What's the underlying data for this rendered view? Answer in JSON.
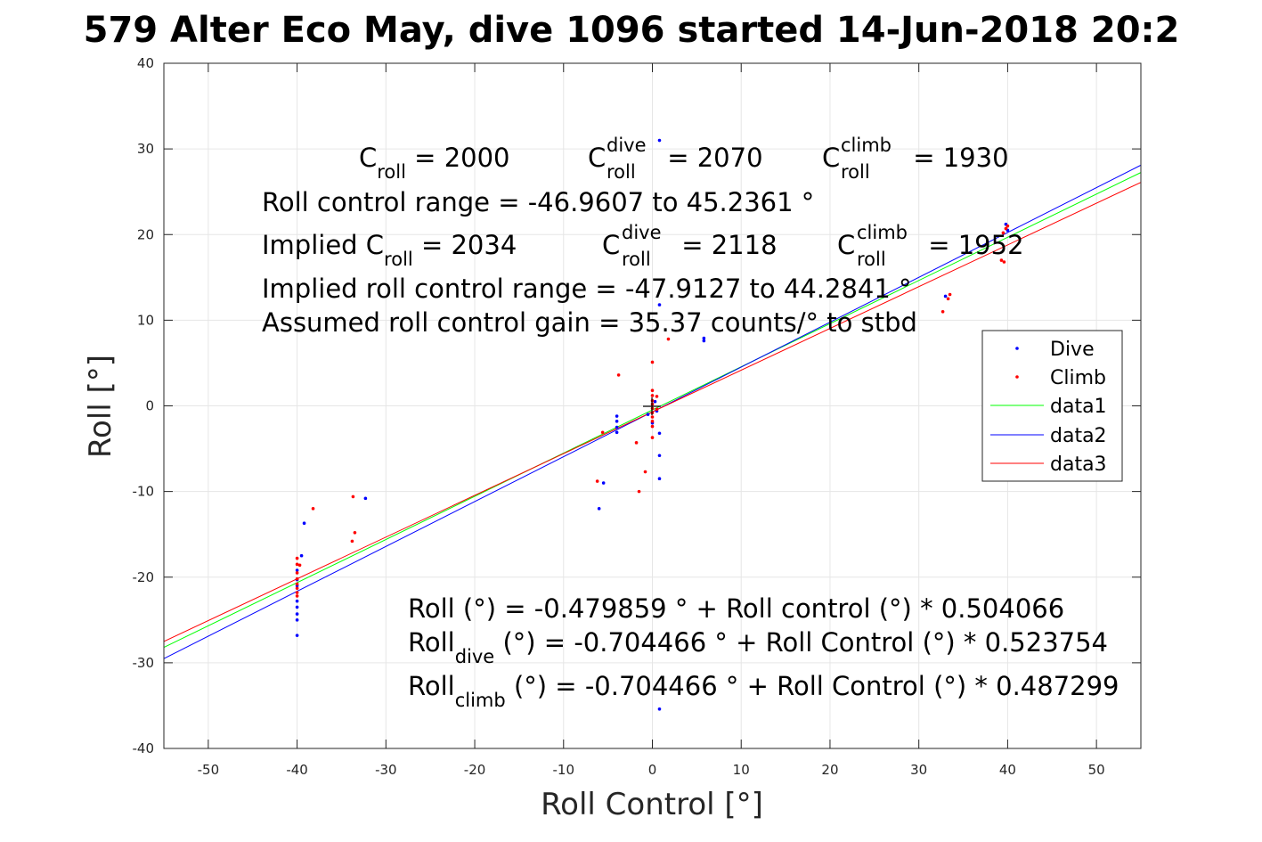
{
  "chart_data": {
    "type": "scatter",
    "title": "579 Alter Eco May, dive 1096 started 14-Jun-2018 20:2",
    "xlabel": "Roll Control [°]",
    "ylabel": "Roll [°]",
    "xlim": [
      -55,
      55
    ],
    "ylim": [
      -40,
      40
    ],
    "xticks": [
      -50,
      -40,
      -30,
      -20,
      -10,
      0,
      10,
      20,
      30,
      40,
      50
    ],
    "yticks": [
      -40,
      -30,
      -20,
      -10,
      0,
      10,
      20,
      30,
      40
    ],
    "xtick_labels": [
      "-50",
      "-40",
      "-30",
      "-20",
      "-10",
      "0",
      "10",
      "20",
      "30",
      "40",
      "50"
    ],
    "ytick_labels": [
      "-40",
      "-30",
      "-20",
      "-10",
      "0",
      "10",
      "20",
      "30",
      "40"
    ],
    "grid": true,
    "legend_position": "right",
    "series": [
      {
        "name": "Dive",
        "kind": "points",
        "color": "#0000ff",
        "points": [
          [
            -40,
            -26.8
          ],
          [
            -40,
            -25
          ],
          [
            -40,
            -24.3
          ],
          [
            -40,
            -23.5
          ],
          [
            -40,
            -22.8
          ],
          [
            -40,
            -21
          ],
          [
            -40,
            -20.3
          ],
          [
            -40,
            -19.2
          ],
          [
            -39.5,
            -17.5
          ],
          [
            -39.2,
            -13.7
          ],
          [
            -32.3,
            -10.8
          ],
          [
            -6,
            -12
          ],
          [
            -5.5,
            -9
          ],
          [
            -4,
            -1.2
          ],
          [
            -4,
            -1.8
          ],
          [
            -4,
            -2.5
          ],
          [
            -4,
            -3.1
          ],
          [
            -0.5,
            -1
          ],
          [
            0,
            -2
          ],
          [
            0.3,
            0.5
          ],
          [
            0.5,
            -0.6
          ],
          [
            0.8,
            31
          ],
          [
            0.8,
            11.8
          ],
          [
            0.8,
            -3.2
          ],
          [
            0.8,
            -5.8
          ],
          [
            0.8,
            -8.5
          ],
          [
            0.8,
            -35.4
          ],
          [
            5.8,
            7.6
          ],
          [
            5.8,
            7.9
          ],
          [
            33,
            12.8
          ],
          [
            39.8,
            21.2
          ],
          [
            40,
            20.5
          ]
        ]
      },
      {
        "name": "Climb",
        "kind": "points",
        "color": "#ff0000",
        "points": [
          [
            -40,
            -17.8
          ],
          [
            -40,
            -18.5
          ],
          [
            -40,
            -19.5
          ],
          [
            -40,
            -20.2
          ],
          [
            -40,
            -20.8
          ],
          [
            -40,
            -21.3
          ],
          [
            -40,
            -21.8
          ],
          [
            -40,
            -22.2
          ],
          [
            -39.7,
            -18.6
          ],
          [
            -38.2,
            -12
          ],
          [
            -33.7,
            -10.6
          ],
          [
            -33.5,
            -14.8
          ],
          [
            -33.8,
            -15.8
          ],
          [
            -6.2,
            -8.8
          ],
          [
            -5.6,
            -3.1
          ],
          [
            -3.8,
            3.6
          ],
          [
            -1.8,
            -4.3
          ],
          [
            -1.5,
            -10
          ],
          [
            -0.8,
            -7.7
          ],
          [
            0,
            5.1
          ],
          [
            0,
            1.8
          ],
          [
            0,
            1.2
          ],
          [
            0,
            0.6
          ],
          [
            0,
            0.2
          ],
          [
            0,
            -0.3
          ],
          [
            0,
            -0.8
          ],
          [
            0,
            -1.3
          ],
          [
            0,
            -1.8
          ],
          [
            0,
            -2.4
          ],
          [
            0,
            -3.7
          ],
          [
            0.5,
            1.1
          ],
          [
            0.5,
            -0.4
          ],
          [
            1.8,
            7.8
          ],
          [
            32.7,
            11
          ],
          [
            33.3,
            12.5
          ],
          [
            33.5,
            13
          ],
          [
            39.3,
            17
          ],
          [
            39.6,
            16.8
          ],
          [
            39.5,
            20.2
          ],
          [
            39.8,
            20.7
          ],
          [
            40,
            21
          ]
        ]
      },
      {
        "name": "data1",
        "kind": "line",
        "color": "#00ff00",
        "intercept": -0.479859,
        "slope": 0.504066
      },
      {
        "name": "data2",
        "kind": "line",
        "color": "#0000ff",
        "intercept": -0.704466,
        "slope": 0.523754
      },
      {
        "name": "data3",
        "kind": "line",
        "color": "#ff0000",
        "intercept": -0.704466,
        "slope": 0.487299
      }
    ],
    "annotations": {
      "c_roll": {
        "base": "C",
        "sub": "roll",
        "rest": " = 2000"
      },
      "c_roll_dive": {
        "base": "C",
        "sub": "roll",
        "sup": "dive",
        "rest": " = 2070"
      },
      "c_roll_climb": {
        "base": "C",
        "sub": "roll",
        "sup": "climb",
        "rest": " = 1930"
      },
      "roll_control_range": "Roll control range = -46.9607 to 45.2361 °",
      "implied_c_roll": {
        "base": "Implied C",
        "sub": "roll",
        "rest": " = 2034"
      },
      "implied_c_roll_dive": {
        "base": "C",
        "sub": "roll",
        "sup": "dive",
        "rest": " = 2118"
      },
      "implied_c_roll_climb": {
        "base": "C",
        "sub": "roll",
        "sup": "climb",
        "rest": " = 1952"
      },
      "implied_roll_control_range": "Implied roll control range = -47.9127 to 44.2841 °",
      "assumed_gain": "Assumed roll control gain = 35.37 counts/° to stbd",
      "fit_all": "Roll (°) = -0.479859 ° + Roll control (°) * 0.504066",
      "fit_dive": {
        "base": "Roll",
        "sub": "dive",
        "rest": " (°) = -0.704466 ° + Roll Control (°) * 0.523754"
      },
      "fit_climb": {
        "base": "Roll",
        "sub": "climb",
        "rest": " (°) = -0.704466 ° + Roll Control (°) * 0.487299"
      }
    }
  }
}
